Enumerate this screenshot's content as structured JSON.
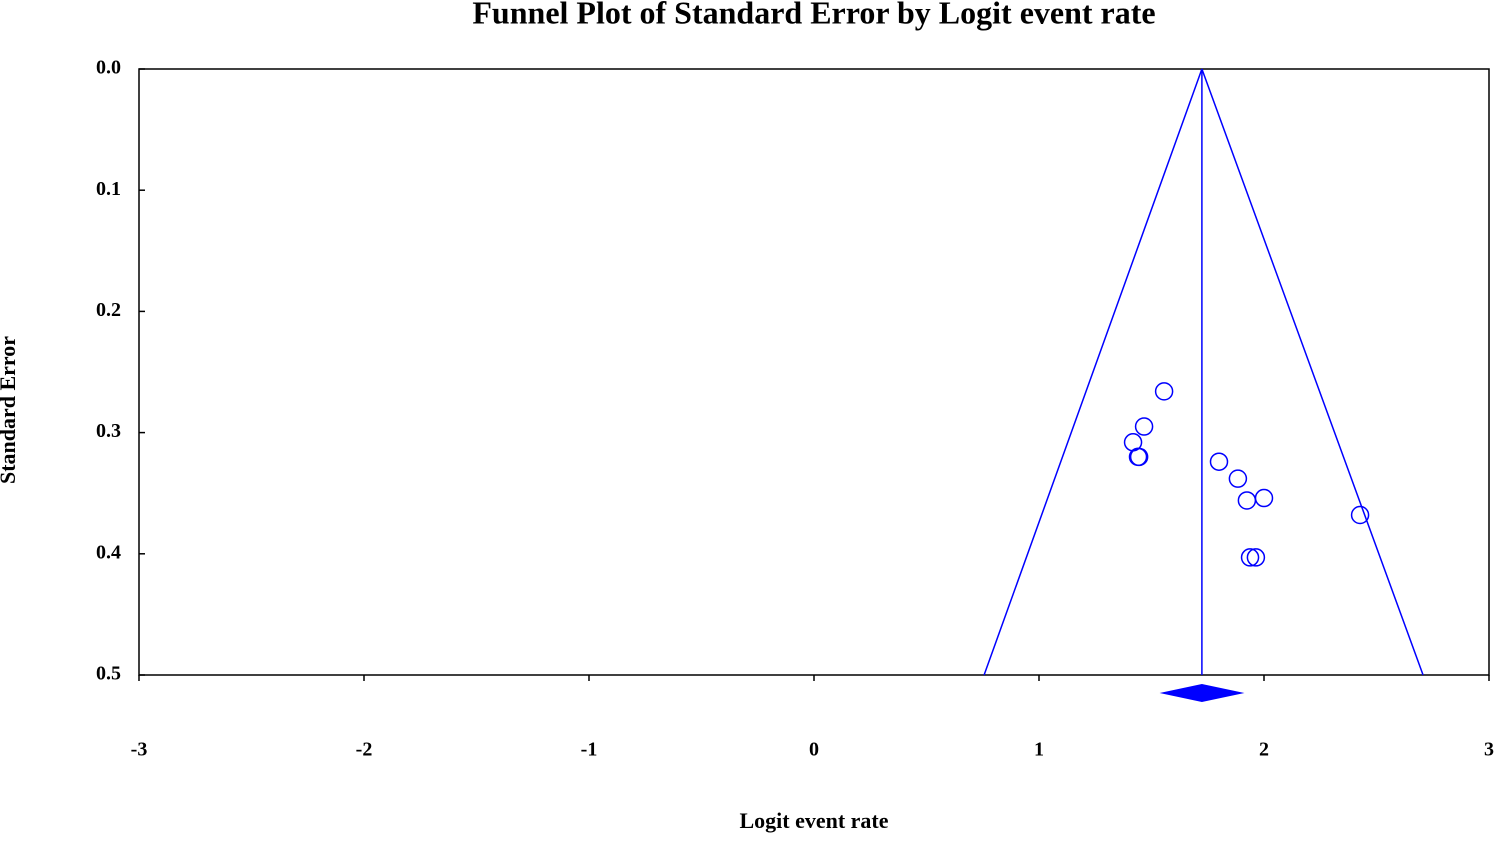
{
  "chart_data": {
    "type": "funnel",
    "title": "Funnel Plot of Standard Error by Logit event rate",
    "x_label": "Logit event rate",
    "y_label": "Standard Error",
    "color": "#0000ff",
    "xlim": [
      -3,
      3
    ],
    "xticks": [
      -3,
      -2,
      -1,
      0,
      1,
      2,
      3
    ],
    "ylim": [
      0,
      0.5
    ],
    "y_inverted": true,
    "yticks": [
      {
        "value": 0,
        "label": "0.0"
      },
      0.1,
      0.2,
      0.3,
      0.4,
      0.5
    ],
    "x": [
      1.556,
      1.467,
      1.418,
      1.44,
      1.445,
      1.8,
      1.884,
      1.924,
      2.0,
      2.427,
      1.938,
      1.964
    ],
    "values": [
      0.266,
      0.295,
      0.308,
      0.32,
      0.32,
      0.324,
      0.338,
      0.356,
      0.354,
      0.368,
      0.403,
      0.403
    ],
    "funnel": {
      "center": 1.724,
      "lower_at_max": 0.756,
      "upper_at_max": 2.707
    },
    "summary": {
      "estimate": 1.724,
      "lower": 1.536,
      "upper": 1.913
    }
  }
}
